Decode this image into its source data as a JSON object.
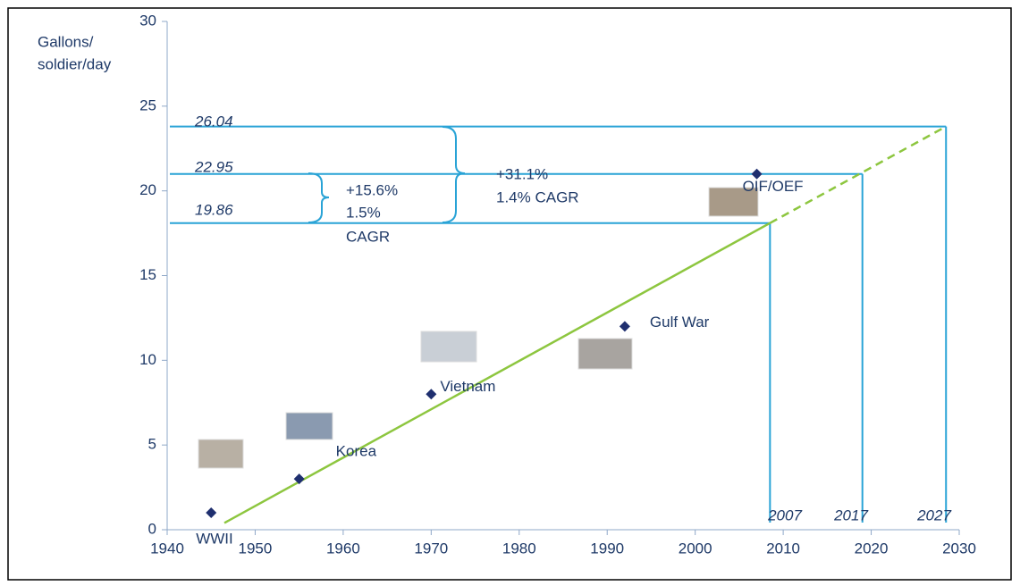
{
  "chart_data": {
    "type": "scatter",
    "y_label": [
      "Gallons/",
      "soldier/day"
    ],
    "x": [
      1945,
      1955,
      1970,
      1992,
      2007
    ],
    "values": [
      1,
      3,
      8,
      12,
      21
    ],
    "point_labels": [
      "WWII",
      "Korea",
      "Vietnam",
      "Gulf War",
      "OIF/OEF"
    ],
    "color": "#1f2f6f",
    "trend": {
      "x": [
        1946.5,
        2008.5
      ],
      "values": [
        0.4,
        18.1
      ],
      "color": "#8dc63f"
    },
    "projection": {
      "x": [
        2008.5,
        2028.5
      ],
      "values": [
        18.1,
        23.8
      ],
      "color": "#8dc63f",
      "dashed": true
    },
    "reference_lines": {
      "color": "#29a3d6",
      "y": [
        18.1,
        21.0,
        23.8
      ],
      "x_end": [
        2008.5,
        2019,
        2028.5
      ],
      "labels": [
        "19.86",
        "22.95",
        "26.04"
      ],
      "years": [
        "2007",
        "2017",
        "2027"
      ]
    },
    "annotations": [
      [
        "+15.6%",
        "1.5%",
        "CAGR"
      ],
      [
        "+31.1%",
        "1.4% CAGR"
      ]
    ],
    "xlim": [
      1940,
      2030
    ],
    "xticks": [
      1940,
      1950,
      1960,
      1970,
      1980,
      1990,
      2000,
      2010,
      2020,
      2030
    ],
    "ylim": [
      0,
      30
    ],
    "yticks": [
      0,
      5,
      10,
      15,
      20,
      25,
      30
    ]
  }
}
